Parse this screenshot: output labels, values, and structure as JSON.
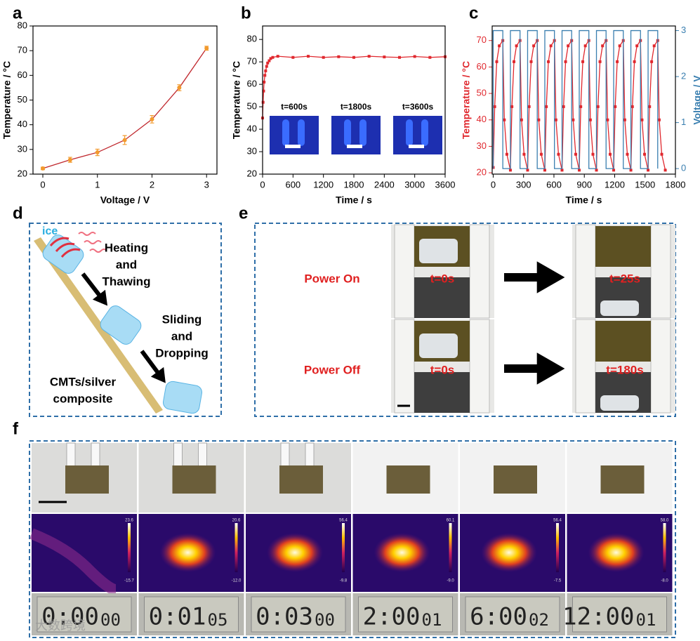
{
  "chart_data": [
    {
      "type": "line",
      "panel_label": "a",
      "xlabel": "Voltage / V",
      "ylabel": "Temperature / °C",
      "xlim": [
        -0.18,
        3.19
      ],
      "xticks": [
        0,
        1,
        2,
        3
      ],
      "ylim": [
        20,
        80
      ],
      "yticks": [
        20,
        30,
        40,
        50,
        60,
        70,
        80
      ],
      "series": [
        {
          "x": [
            0,
            0.5,
            1,
            1.5,
            2,
            2.5,
            3
          ],
          "values": [
            22.3,
            25.8,
            28.8,
            33.8,
            42.2,
            55,
            71
          ],
          "errors": [
            0.5,
            1.0,
            1.3,
            1.8,
            1.5,
            1.2,
            0.8
          ],
          "color": "#c0282e",
          "marker_color": "#f29a2e",
          "marker": "circle"
        }
      ]
    },
    {
      "type": "line",
      "panel_label": "b",
      "xlabel": "Time / s",
      "ylabel": "Temperature / °C",
      "xlim": [
        0,
        3600
      ],
      "xticks": [
        0,
        600,
        1200,
        1800,
        2400,
        3000,
        3600
      ],
      "ylim": [
        20,
        86
      ],
      "yticks": [
        20,
        30,
        40,
        50,
        60,
        70,
        80
      ],
      "annotations": [
        "t=600s",
        "t=1800s",
        "t=3600s"
      ],
      "series": [
        {
          "x": [
            0,
            10,
            20,
            30,
            45,
            60,
            80,
            100,
            130,
            160,
            200,
            300,
            600,
            900,
            1200,
            1500,
            1800,
            2100,
            2400,
            2700,
            3000,
            3300,
            3600
          ],
          "values": [
            45,
            52,
            57,
            61,
            64,
            66,
            68,
            69.5,
            70.5,
            71.5,
            72,
            72.5,
            72,
            72.5,
            72,
            72.3,
            72,
            72.5,
            72.2,
            72,
            72.4,
            72,
            72.3
          ],
          "color": "#e0282e",
          "marker_color": "#e0282e",
          "marker": "square"
        }
      ]
    },
    {
      "type": "line",
      "panel_label": "c",
      "xlabel": "Time / s",
      "ylabel": "Temperature / °C",
      "y2label": "Voltage / V",
      "xlim": [
        -10,
        1800
      ],
      "xticks": [
        0,
        300,
        600,
        900,
        1200,
        1500,
        1800
      ],
      "ylim": [
        19.5,
        75.5
      ],
      "yticks": [
        20,
        30,
        40,
        50,
        60,
        70
      ],
      "y2lim": [
        -0.12,
        3.1
      ],
      "y2ticks": [
        0,
        1,
        2,
        3
      ],
      "series": [
        {
          "x": [
            0,
            15,
            35,
            60,
            95,
            110,
            135,
            170,
            185,
            205,
            230,
            265,
            280,
            305,
            340,
            355,
            375,
            400,
            435,
            450,
            475,
            510,
            525,
            545,
            570,
            605,
            620,
            645,
            680,
            695,
            715,
            740,
            775,
            790,
            815,
            850,
            865,
            885,
            910,
            945,
            960,
            985,
            1020,
            1035,
            1055,
            1080,
            1115,
            1130,
            1155,
            1190,
            1205,
            1225,
            1250,
            1285,
            1300,
            1325,
            1360,
            1375,
            1395,
            1420,
            1455,
            1470,
            1495,
            1530,
            1545,
            1565,
            1590,
            1625,
            1640,
            1665,
            1700
          ],
          "values": [
            22,
            45,
            62,
            68,
            70,
            40,
            27,
            21,
            45,
            62,
            68,
            70,
            40,
            27,
            21,
            45,
            62,
            68,
            70,
            40,
            27,
            21,
            45,
            62,
            68,
            70,
            40,
            27,
            21,
            45,
            62,
            68,
            70,
            40,
            27,
            21,
            45,
            62,
            68,
            70,
            40,
            27,
            21,
            45,
            62,
            68,
            70,
            40,
            27,
            21,
            45,
            62,
            68,
            70,
            40,
            27,
            21,
            45,
            62,
            68,
            70,
            40,
            27,
            21,
            45,
            62,
            68,
            70,
            40,
            27,
            21
          ],
          "color": "#e0282e",
          "marker_color": "#e0282e",
          "marker": "square"
        },
        {
          "axis": "y2",
          "x": [
            0,
            0,
            95,
            95,
            170,
            170,
            265,
            265,
            340,
            340,
            435,
            435,
            510,
            510,
            605,
            605,
            680,
            680,
            775,
            775,
            850,
            850,
            945,
            945,
            1020,
            1020,
            1115,
            1115,
            1190,
            1190,
            1285,
            1285,
            1360,
            1360,
            1455,
            1455,
            1530,
            1530,
            1625,
            1625
          ],
          "values": [
            0,
            3,
            3,
            0,
            0,
            3,
            3,
            0,
            0,
            3,
            3,
            0,
            0,
            3,
            3,
            0,
            0,
            3,
            3,
            0,
            0,
            3,
            3,
            0,
            0,
            3,
            3,
            0,
            0,
            3,
            3,
            0,
            0,
            3,
            3,
            0,
            0,
            3,
            3,
            0
          ],
          "color": "#3a7fb0"
        }
      ]
    }
  ],
  "panel_d": {
    "label": "d",
    "ice": "ice",
    "step1": [
      "Heating",
      "and",
      "Thawing"
    ],
    "step2": [
      "Sliding",
      "and",
      "Dropping"
    ],
    "material": [
      "CMTs/silver",
      "composite"
    ]
  },
  "panel_e": {
    "label": "e",
    "rows": [
      {
        "condition": "Power On",
        "start": "t=0s",
        "end": "t=25s"
      },
      {
        "condition": "Power Off",
        "start": "t=0s",
        "end": "t=180s"
      }
    ]
  },
  "panel_f": {
    "label": "f",
    "scales": [
      [
        "23.6",
        "-15.7"
      ],
      [
        "20.6",
        "-12.0"
      ],
      [
        "56.4",
        "-9.8"
      ],
      [
        "60.1",
        "-9.0"
      ],
      [
        "56.4",
        "-7.5"
      ],
      [
        "58.0",
        "-8.0"
      ]
    ],
    "timers": [
      [
        "0:00",
        "00"
      ],
      [
        "0:01",
        "05"
      ],
      [
        "0:03",
        "00"
      ],
      [
        "2:00",
        "01"
      ],
      [
        "6:00",
        "02"
      ],
      [
        "12:00",
        "01"
      ]
    ]
  },
  "watermark": "大数跨境"
}
